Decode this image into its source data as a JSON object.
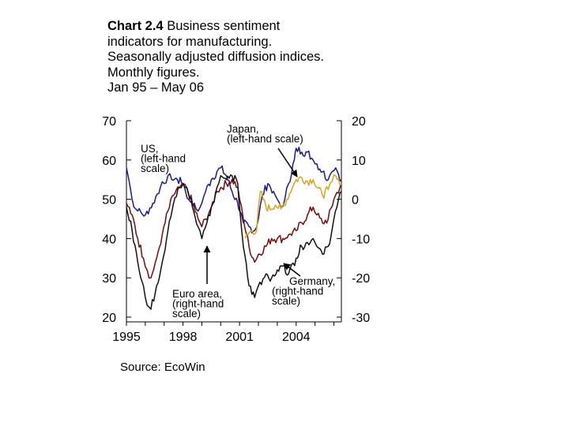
{
  "title": {
    "prefix": "Chart 2.4",
    "line1": " Business sentiment",
    "line2": "indicators for manufacturing.",
    "line3": "Seasonally adjusted diffusion indices.",
    "line4": "Monthly figures.",
    "line5": "Jan 95 – May 06"
  },
  "source": "Source: EcoWin",
  "colors": {
    "us": "#1a1a8c",
    "euro": "#7a0a0a",
    "japan": "#d9a520",
    "germany": "#111111"
  },
  "chart_data": {
    "type": "line",
    "title": "Business sentiment indicators for manufacturing",
    "x_ticks": [
      "1995",
      "1998",
      "2001",
      "2004"
    ],
    "x_range": [
      1995.0,
      2006.4
    ],
    "left_axis": {
      "ticks": [
        "70",
        "60",
        "50",
        "40",
        "30",
        "20"
      ],
      "range": [
        20,
        70
      ]
    },
    "right_axis": {
      "ticks": [
        "20",
        "10",
        "0",
        "-10",
        "-20",
        "-30"
      ],
      "range": [
        -30,
        20
      ]
    },
    "annotations": [
      {
        "id": "us",
        "lines": [
          "US,",
          "(left-hand",
          "scale)"
        ]
      },
      {
        "id": "japan",
        "lines": [
          "Japan,",
          "(left-hand scale)"
        ]
      },
      {
        "id": "euro",
        "lines": [
          "Euro area,",
          "(right-hand",
          "scale)"
        ]
      },
      {
        "id": "germany",
        "lines": [
          "Germany,",
          "(right-hand",
          "scale)"
        ]
      }
    ],
    "series": [
      {
        "name": "US",
        "axis": "left",
        "x": [
          1995.0,
          1995.2,
          1995.4,
          1995.6,
          1996.0,
          1996.4,
          1996.8,
          1997.0,
          1997.2,
          1997.4,
          1997.7,
          1998.0,
          1998.3,
          1998.6,
          1998.8,
          1999.0,
          1999.2,
          1999.5,
          1999.8,
          2000.0,
          2000.3,
          2000.6,
          2000.9,
          2001.0,
          2001.2,
          2001.5,
          2001.8,
          2002.0,
          2002.2,
          2002.5,
          2002.8,
          2003.0,
          2003.2,
          2003.4,
          2003.6,
          2003.9,
          2004.0,
          2004.3,
          2004.6,
          2004.9,
          2005.1,
          2005.4,
          2005.7,
          2005.9,
          2006.1,
          2006.4
        ],
        "values": [
          58,
          53,
          48,
          47,
          46,
          49,
          53,
          54,
          56,
          55,
          55,
          54,
          50,
          49,
          47,
          49,
          52,
          55,
          57,
          58,
          56,
          52,
          49,
          47,
          44,
          43,
          42,
          45,
          51,
          54,
          52,
          50,
          48,
          50,
          54,
          60,
          63,
          62,
          62,
          60,
          59,
          57,
          55,
          57,
          58,
          55
        ]
      },
      {
        "name": "Euro area",
        "axis": "right",
        "x": [
          1995.0,
          1995.3,
          1995.6,
          1995.9,
          1996.1,
          1996.3,
          1996.6,
          1996.9,
          1997.2,
          1997.5,
          1997.8,
          1998.0,
          1998.2,
          1998.5,
          1998.8,
          1999.0,
          1999.2,
          1999.5,
          1999.8,
          2000.0,
          2000.3,
          2000.6,
          2000.9,
          2001.0,
          2001.2,
          2001.5,
          2001.8,
          2002.0,
          2002.4,
          2002.7,
          2003.0,
          2003.3,
          2003.6,
          2004.0,
          2004.3,
          2004.6,
          2004.9,
          2005.1,
          2005.4,
          2005.7,
          2006.0,
          2006.4
        ],
        "values": [
          -1,
          -4,
          -10,
          -15,
          -18,
          -20,
          -15,
          -9,
          -3,
          1,
          3,
          4,
          3,
          -1,
          -5,
          -7,
          -5,
          -2,
          2,
          3,
          4,
          5,
          3,
          0,
          -5,
          -12,
          -16,
          -14,
          -12,
          -10,
          -10,
          -10,
          -9,
          -8,
          -6,
          -4,
          -2,
          -4,
          -6,
          -5,
          0,
          4
        ]
      },
      {
        "name": "Japan",
        "axis": "left",
        "x": [
          2001.3,
          2001.6,
          2001.9,
          2002.1,
          2002.4,
          2002.7,
          2002.9,
          2003.2,
          2003.5,
          2003.8,
          2004.0,
          2004.3,
          2004.6,
          2004.9,
          2005.1,
          2005.4,
          2005.7,
          2005.9,
          2006.1,
          2006.4
        ],
        "values": [
          40.0,
          42.0,
          42.0,
          52.0,
          48.0,
          47.5,
          48.5,
          47.5,
          50.0,
          53.0,
          55.0,
          55.5,
          54.5,
          55.0,
          53.0,
          51.0,
          52.5,
          54.5,
          56.0,
          54.0
        ]
      },
      {
        "name": "Germany",
        "axis": "right",
        "x": [
          1995.0,
          1995.3,
          1995.6,
          1995.9,
          1996.1,
          1996.3,
          1996.6,
          1996.9,
          1997.2,
          1997.5,
          1997.8,
          1998.0,
          1998.2,
          1998.5,
          1998.8,
          1999.0,
          1999.2,
          1999.5,
          1999.8,
          2000.0,
          2000.3,
          2000.6,
          2000.9,
          2001.0,
          2001.2,
          2001.5,
          2001.8,
          2002.0,
          2002.4,
          2002.7,
          2003.0,
          2003.3,
          2003.6,
          2004.0,
          2004.3,
          2004.6,
          2004.9,
          2005.1,
          2005.4,
          2005.7,
          2006.0,
          2006.4
        ],
        "values": [
          -2,
          -8,
          -16,
          -22,
          -27,
          -28,
          -22,
          -16,
          -8,
          -1,
          3,
          4,
          3,
          -2,
          -7,
          -10,
          -7,
          -2,
          3,
          6,
          5,
          6,
          4,
          -2,
          -12,
          -22,
          -25,
          -22,
          -19,
          -20,
          -18,
          -17,
          -19,
          -15,
          -12,
          -11,
          -10,
          -12,
          -14,
          -12,
          -5,
          2
        ]
      }
    ]
  }
}
